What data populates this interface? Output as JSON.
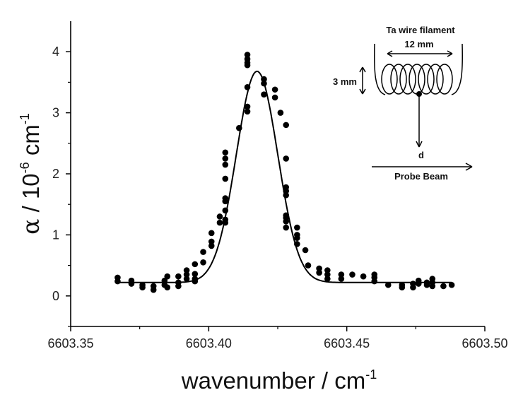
{
  "chart_data": {
    "type": "scatter",
    "xlabel": {
      "base": "wavenumber / cm",
      "sup": "-1"
    },
    "ylabel": {
      "symbol": "α",
      "text": " / 10",
      "exp1": "-6",
      "unit": " cm",
      "exp2": "-1"
    },
    "xlim": [
      6603.35,
      6603.5
    ],
    "ylim": [
      -0.5,
      4.5
    ],
    "xticks": [
      6603.35,
      6603.4,
      6603.45,
      6603.5
    ],
    "xtick_labels": [
      "6603.35",
      "6603.40",
      "6603.45",
      "6603.50"
    ],
    "yticks": [
      0,
      1,
      2,
      3,
      4
    ],
    "ytick_labels": [
      "0",
      "1",
      "2",
      "3",
      "4"
    ],
    "grid": false,
    "fit_line": {
      "shape": "gaussian",
      "baseline": 0.22,
      "amplitude": 3.46,
      "center": 6603.4175,
      "sigma": 0.0075,
      "x_start": 6603.367,
      "x_end": 6603.488
    },
    "series": [
      {
        "points": [
          [
            6603.367,
            0.3
          ],
          [
            6603.367,
            0.24
          ],
          [
            6603.372,
            0.25
          ],
          [
            6603.372,
            0.2
          ],
          [
            6603.376,
            0.18
          ],
          [
            6603.376,
            0.14
          ],
          [
            6603.38,
            0.16
          ],
          [
            6603.38,
            0.1
          ],
          [
            6603.384,
            0.25
          ],
          [
            6603.384,
            0.18
          ],
          [
            6603.385,
            0.32
          ],
          [
            6603.385,
            0.14
          ],
          [
            6603.389,
            0.32
          ],
          [
            6603.389,
            0.22
          ],
          [
            6603.389,
            0.16
          ],
          [
            6603.392,
            0.42
          ],
          [
            6603.392,
            0.35
          ],
          [
            6603.392,
            0.28
          ],
          [
            6603.395,
            0.52
          ],
          [
            6603.395,
            0.36
          ],
          [
            6603.395,
            0.28
          ],
          [
            6603.395,
            0.24
          ],
          [
            6603.398,
            0.72
          ],
          [
            6603.398,
            0.55
          ],
          [
            6603.401,
            1.03
          ],
          [
            6603.401,
            0.89
          ],
          [
            6603.401,
            0.82
          ],
          [
            6603.404,
            1.3
          ],
          [
            6603.404,
            1.2
          ],
          [
            6603.406,
            1.6
          ],
          [
            6603.406,
            1.55
          ],
          [
            6603.406,
            1.4
          ],
          [
            6603.406,
            1.25
          ],
          [
            6603.406,
            1.2
          ],
          [
            6603.411,
            2.75
          ],
          [
            6603.406,
            2.35
          ],
          [
            6603.406,
            2.25
          ],
          [
            6603.406,
            2.15
          ],
          [
            6603.406,
            1.92
          ],
          [
            6603.414,
            3.95
          ],
          [
            6603.414,
            3.88
          ],
          [
            6603.414,
            3.82
          ],
          [
            6603.414,
            3.78
          ],
          [
            6603.414,
            3.42
          ],
          [
            6603.414,
            3.1
          ],
          [
            6603.414,
            3.02
          ],
          [
            6603.42,
            3.55
          ],
          [
            6603.42,
            3.48
          ],
          [
            6603.42,
            3.3
          ],
          [
            6603.424,
            3.38
          ],
          [
            6603.424,
            3.25
          ],
          [
            6603.426,
            3.0
          ],
          [
            6603.428,
            2.8
          ],
          [
            6603.428,
            2.25
          ],
          [
            6603.428,
            1.78
          ],
          [
            6603.428,
            1.72
          ],
          [
            6603.428,
            1.65
          ],
          [
            6603.428,
            1.32
          ],
          [
            6603.428,
            1.28
          ],
          [
            6603.428,
            1.22
          ],
          [
            6603.428,
            1.12
          ],
          [
            6603.432,
            1.12
          ],
          [
            6603.432,
            1.0
          ],
          [
            6603.432,
            0.95
          ],
          [
            6603.432,
            0.85
          ],
          [
            6603.435,
            0.75
          ],
          [
            6603.436,
            0.5
          ],
          [
            6603.44,
            0.45
          ],
          [
            6603.44,
            0.38
          ],
          [
            6603.443,
            0.42
          ],
          [
            6603.443,
            0.35
          ],
          [
            6603.443,
            0.28
          ],
          [
            6603.448,
            0.35
          ],
          [
            6603.448,
            0.28
          ],
          [
            6603.452,
            0.35
          ],
          [
            6603.456,
            0.32
          ],
          [
            6603.46,
            0.35
          ],
          [
            6603.46,
            0.3
          ],
          [
            6603.46,
            0.24
          ],
          [
            6603.465,
            0.18
          ],
          [
            6603.47,
            0.18
          ],
          [
            6603.47,
            0.14
          ],
          [
            6603.474,
            0.14
          ],
          [
            6603.474,
            0.2
          ],
          [
            6603.476,
            0.25
          ],
          [
            6603.476,
            0.2
          ],
          [
            6603.479,
            0.22
          ],
          [
            6603.479,
            0.18
          ],
          [
            6603.481,
            0.28
          ],
          [
            6603.481,
            0.22
          ],
          [
            6603.481,
            0.16
          ],
          [
            6603.485,
            0.16
          ],
          [
            6603.488,
            0.18
          ]
        ]
      }
    ],
    "inset": {
      "title": "Ta wire filament",
      "width_label": "12 mm",
      "height_label": "3 mm",
      "distance_label": "d",
      "beam_label": "Probe Beam"
    }
  }
}
